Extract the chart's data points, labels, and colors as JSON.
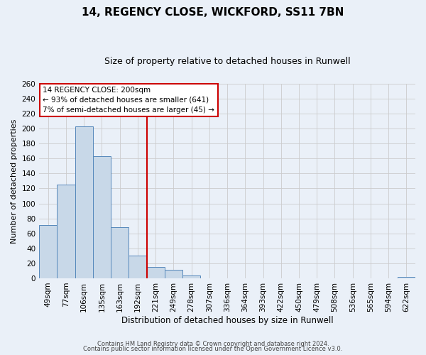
{
  "title": "14, REGENCY CLOSE, WICKFORD, SS11 7BN",
  "subtitle": "Size of property relative to detached houses in Runwell",
  "xlabel": "Distribution of detached houses by size in Runwell",
  "ylabel": "Number of detached properties",
  "bin_labels": [
    "49sqm",
    "77sqm",
    "106sqm",
    "135sqm",
    "163sqm",
    "192sqm",
    "221sqm",
    "249sqm",
    "278sqm",
    "307sqm",
    "336sqm",
    "364sqm",
    "393sqm",
    "422sqm",
    "450sqm",
    "479sqm",
    "508sqm",
    "536sqm",
    "565sqm",
    "594sqm",
    "622sqm"
  ],
  "bar_heights": [
    71,
    125,
    203,
    163,
    68,
    30,
    15,
    11,
    4,
    0,
    0,
    0,
    0,
    0,
    0,
    0,
    0,
    0,
    0,
    0,
    2
  ],
  "bar_color": "#c8d8e8",
  "bar_edge_color": "#5588bb",
  "grid_color": "#cccccc",
  "background_color": "#eaf0f8",
  "vline_color": "#cc0000",
  "annotation_lines": [
    "14 REGENCY CLOSE: 200sqm",
    "← 93% of detached houses are smaller (641)",
    "7% of semi-detached houses are larger (45) →"
  ],
  "ylim": [
    0,
    260
  ],
  "yticks": [
    0,
    20,
    40,
    60,
    80,
    100,
    120,
    140,
    160,
    180,
    200,
    220,
    240,
    260
  ],
  "footer1": "Contains HM Land Registry data © Crown copyright and database right 2024.",
  "footer2": "Contains public sector information licensed under the Open Government Licence v3.0.",
  "title_fontsize": 11,
  "subtitle_fontsize": 9,
  "ylabel_fontsize": 8,
  "xlabel_fontsize": 8.5,
  "tick_fontsize": 7.5,
  "annotation_fontsize": 7.5,
  "footer_fontsize": 6
}
